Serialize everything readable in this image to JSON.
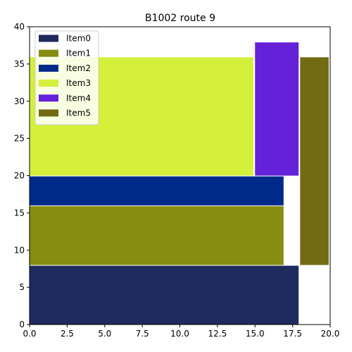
{
  "chart_data": {
    "type": "bar",
    "title": "B1002 route 9",
    "xlabel": "",
    "ylabel": "",
    "xlim": [
      0,
      20
    ],
    "ylim": [
      0,
      40
    ],
    "x_ticks": [
      "0.0",
      "2.5",
      "5.0",
      "7.5",
      "10.0",
      "12.5",
      "15.0",
      "17.5",
      "20.0"
    ],
    "y_ticks": [
      "0",
      "5",
      "10",
      "15",
      "20",
      "25",
      "30",
      "35",
      "40"
    ],
    "grid": false,
    "legend_position": "top-left",
    "series": [
      {
        "name": "Item0",
        "color": "#1f2a5e",
        "x0": 0,
        "x1": 17.9,
        "y0": 0,
        "y1": 7.9
      },
      {
        "name": "Item1",
        "color": "#868d10",
        "x0": 0,
        "x1": 16.9,
        "y0": 8,
        "y1": 15.9
      },
      {
        "name": "Item2",
        "color": "#002a8a",
        "x0": 0,
        "x1": 16.9,
        "y0": 16,
        "y1": 19.9
      },
      {
        "name": "Item3",
        "color": "#d4f03a",
        "x0": 0,
        "x1": 14.9,
        "y0": 20,
        "y1": 35.9
      },
      {
        "name": "Item4",
        "color": "#6421d8",
        "x0": 15,
        "x1": 17.9,
        "y0": 20,
        "y1": 37.9
      },
      {
        "name": "Item5",
        "color": "#736a14",
        "x0": 18,
        "x1": 19.9,
        "y0": 8,
        "y1": 35.9
      }
    ]
  }
}
